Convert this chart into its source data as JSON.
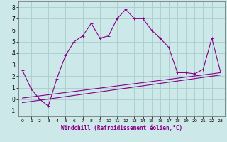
{
  "xlabel": "Windchill (Refroidissement éolien,°C)",
  "background_color": "#cce8e8",
  "grid_color": "#aacccc",
  "line_color": "#880088",
  "xlim": [
    -0.5,
    23.5
  ],
  "ylim": [
    -1.5,
    8.5
  ],
  "xticks": [
    0,
    1,
    2,
    3,
    4,
    5,
    6,
    7,
    8,
    9,
    10,
    11,
    12,
    13,
    14,
    15,
    16,
    17,
    18,
    19,
    20,
    21,
    22,
    23
  ],
  "yticks": [
    -1,
    0,
    1,
    2,
    3,
    4,
    5,
    6,
    7,
    8
  ],
  "series1_x": [
    0,
    1,
    2,
    3,
    4,
    5,
    6,
    7,
    8,
    9,
    10,
    11,
    12,
    13,
    14,
    15,
    16,
    17,
    18,
    19,
    20,
    21,
    22,
    23
  ],
  "series1_y": [
    2.5,
    0.9,
    0.0,
    -0.6,
    1.8,
    3.8,
    5.0,
    5.5,
    6.6,
    5.3,
    5.5,
    7.0,
    7.8,
    7.0,
    7.0,
    6.0,
    5.3,
    4.5,
    2.3,
    2.3,
    2.2,
    2.6,
    5.3,
    2.4
  ],
  "series2_x": [
    0,
    23
  ],
  "series2_y": [
    0.1,
    2.3
  ],
  "series3_x": [
    0,
    23
  ],
  "series3_y": [
    -0.3,
    2.1
  ]
}
